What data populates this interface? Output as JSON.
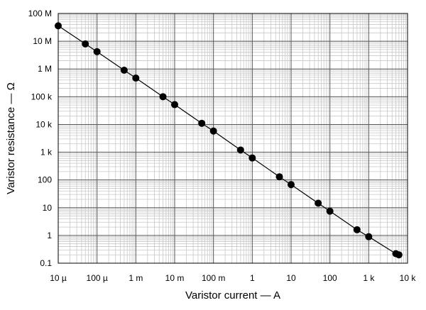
{
  "chart_data": {
    "type": "scatter",
    "title": "",
    "xlabel": "Varistor current — A",
    "ylabel": "Varistor resistance — Ω",
    "x_scale": "log",
    "y_scale": "log",
    "xlim": [
      1e-05,
      10000
    ],
    "ylim": [
      0.1,
      100000000
    ],
    "grid": true,
    "legend": "none",
    "x_ticks": [
      {
        "value": 1e-05,
        "label": "10 µ"
      },
      {
        "value": 0.0001,
        "label": "100 µ"
      },
      {
        "value": 0.001,
        "label": "1 m"
      },
      {
        "value": 0.01,
        "label": "10 m"
      },
      {
        "value": 0.1,
        "label": "100 m"
      },
      {
        "value": 1,
        "label": "1"
      },
      {
        "value": 10,
        "label": "10"
      },
      {
        "value": 100,
        "label": "100"
      },
      {
        "value": 1000,
        "label": "1 k"
      },
      {
        "value": 10000,
        "label": "10 k"
      }
    ],
    "y_ticks": [
      {
        "value": 0.1,
        "label": "0.1"
      },
      {
        "value": 1,
        "label": "1"
      },
      {
        "value": 10,
        "label": "10"
      },
      {
        "value": 100,
        "label": "100"
      },
      {
        "value": 1000,
        "label": "1 k"
      },
      {
        "value": 10000,
        "label": "10 k"
      },
      {
        "value": 100000,
        "label": "100 k"
      },
      {
        "value": 1000000,
        "label": "1 M"
      },
      {
        "value": 10000000,
        "label": "10 M"
      },
      {
        "value": 100000000,
        "label": "100 M"
      }
    ],
    "series": [
      {
        "x": [
          1e-05,
          5e-05,
          0.0001,
          0.0005,
          0.001,
          0.005,
          0.01,
          0.05,
          0.1,
          0.5,
          1,
          5,
          10,
          50,
          100,
          500,
          1000,
          5000,
          6000
        ],
        "y": [
          36000000,
          8000000,
          4200000,
          900000,
          470000,
          100000,
          52000,
          11000,
          5800,
          1200,
          620,
          130,
          68,
          14.5,
          7.5,
          1.6,
          0.9,
          0.22,
          0.2
        ]
      }
    ],
    "colors": {
      "grid_minor": "#c8c8c8",
      "grid_major": "#555555",
      "frame": "#000000",
      "line": "#000000",
      "marker": "#000000"
    }
  }
}
